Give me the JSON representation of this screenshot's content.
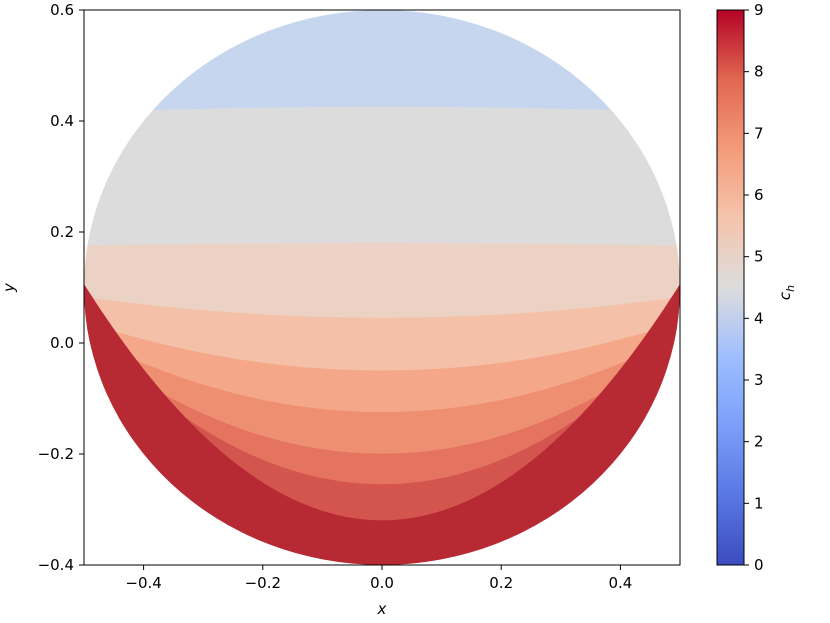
{
  "chart_data": {
    "type": "heatmap",
    "subtype": "filled-contour",
    "domain": "circle",
    "circle": {
      "center": [
        0.0,
        0.1
      ],
      "radius": 0.5
    },
    "xlabel": "x",
    "ylabel": "y",
    "xlim": [
      -0.5,
      0.5
    ],
    "ylim": [
      -0.4,
      0.6
    ],
    "xticks": [
      -0.4,
      -0.2,
      0.0,
      0.2,
      0.4
    ],
    "xtick_labels": [
      "−0.4",
      "−0.2",
      "0.0",
      "0.2",
      "0.4"
    ],
    "yticks": [
      -0.4,
      -0.2,
      0.0,
      0.2,
      0.4,
      0.6
    ],
    "ytick_labels": [
      "−0.4",
      "−0.2",
      "0.0",
      "0.2",
      "0.4",
      "0.6"
    ],
    "colorbar": {
      "label": "c_h",
      "colormap": "coolwarm",
      "range": [
        0,
        9
      ],
      "ticks": [
        0,
        1,
        2,
        3,
        4,
        5,
        6,
        7,
        8,
        9
      ],
      "tick_labels": [
        "0",
        "1",
        "2",
        "3",
        "4",
        "5",
        "6",
        "7",
        "8",
        "9"
      ]
    },
    "contour_levels": [
      {
        "range": [
          3.5,
          4.5
        ],
        "color": "#c6d6ef"
      },
      {
        "range": [
          4.5,
          5.0
        ],
        "color": "#dcdcdc"
      },
      {
        "range": [
          5.0,
          5.5
        ],
        "color": "#ecd2c4"
      },
      {
        "range": [
          5.5,
          6.0
        ],
        "color": "#f4c1a8"
      },
      {
        "range": [
          6.0,
          6.5
        ],
        "color": "#f5a889"
      },
      {
        "range": [
          6.5,
          7.0
        ],
        "color": "#ee8f72"
      },
      {
        "range": [
          7.0,
          7.5
        ],
        "color": "#e47360"
      },
      {
        "range": [
          7.5,
          8.0
        ],
        "color": "#d4554e"
      },
      {
        "range": [
          8.0,
          8.5
        ],
        "color": "#b72933"
      }
    ],
    "boundaries": [
      {
        "level": 4.5,
        "y_center": 0.425,
        "curvature": -0.04
      },
      {
        "level": 5.0,
        "y_center": 0.18,
        "curvature": -0.02
      },
      {
        "level": 5.5,
        "y_center": 0.045,
        "curvature": 0.15
      },
      {
        "level": 6.0,
        "y_center": -0.05,
        "curvature": 0.35
      },
      {
        "level": 6.5,
        "y_center": -0.125,
        "curvature": 0.55
      },
      {
        "level": 7.0,
        "y_center": -0.2,
        "curvature": 0.8
      },
      {
        "level": 7.5,
        "y_center": -0.255,
        "curvature": 1.1
      },
      {
        "level": 8.0,
        "y_center": -0.32,
        "curvature": 1.7
      }
    ],
    "grid": false
  }
}
